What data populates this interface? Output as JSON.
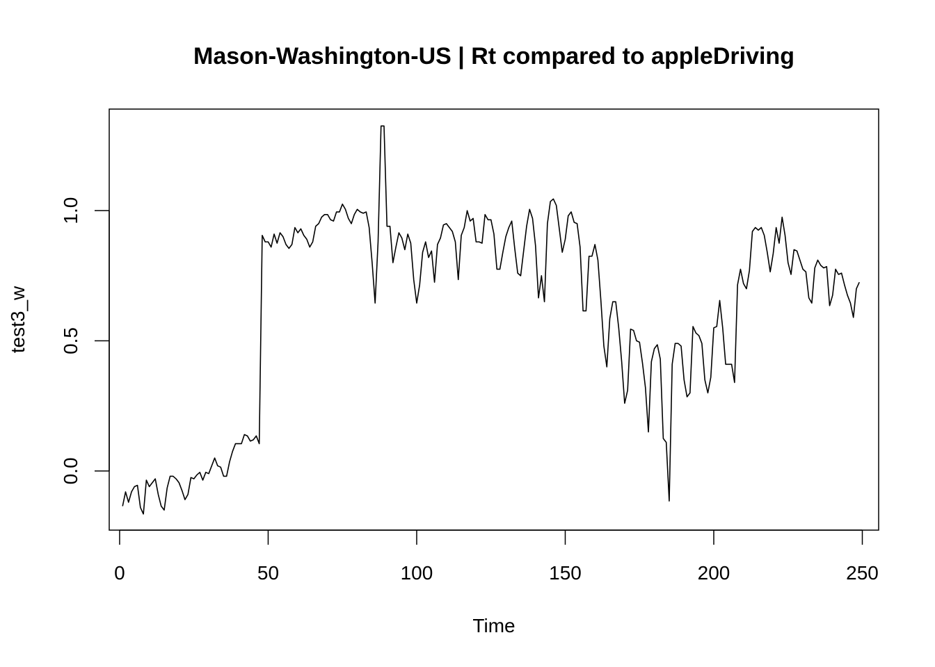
{
  "chart_data": {
    "type": "line",
    "title": "Mason-Washington-US | Rt compared to appleDriving",
    "xlabel": "Time",
    "ylabel": "test3_w",
    "xlim": [
      -3.5,
      255.5
    ],
    "ylim": [
      -0.227,
      1.39
    ],
    "x_ticks": [
      0,
      50,
      100,
      150,
      200,
      250
    ],
    "x_tick_labels": [
      "0",
      "50",
      "100",
      "150",
      "200",
      "250"
    ],
    "y_ticks": [
      0.0,
      0.5,
      1.0
    ],
    "y_tick_labels": [
      "0.0",
      "0.5",
      "1.0"
    ],
    "grid": false,
    "series": [
      {
        "x_start": 1,
        "values": [
          -0.135,
          -0.08,
          -0.12,
          -0.08,
          -0.06,
          -0.055,
          -0.14,
          -0.165,
          -0.035,
          -0.06,
          -0.045,
          -0.03,
          -0.09,
          -0.135,
          -0.15,
          -0.065,
          -0.02,
          -0.02,
          -0.03,
          -0.045,
          -0.075,
          -0.11,
          -0.09,
          -0.025,
          -0.03,
          -0.015,
          -0.005,
          -0.035,
          -0.005,
          -0.01,
          0.02,
          0.05,
          0.02,
          0.015,
          -0.02,
          -0.02,
          0.035,
          0.075,
          0.105,
          0.105,
          0.105,
          0.14,
          0.135,
          0.115,
          0.12,
          0.135,
          0.105,
          0.905,
          0.88,
          0.88,
          0.86,
          0.91,
          0.875,
          0.915,
          0.9,
          0.87,
          0.855,
          0.87,
          0.935,
          0.915,
          0.93,
          0.905,
          0.89,
          0.86,
          0.88,
          0.94,
          0.95,
          0.975,
          0.985,
          0.985,
          0.965,
          0.96,
          0.995,
          0.995,
          1.025,
          1.005,
          0.97,
          0.95,
          0.985,
          1.005,
          0.995,
          0.99,
          0.995,
          0.935,
          0.8,
          0.645,
          0.88,
          1.325,
          1.325,
          0.94,
          0.94,
          0.8,
          0.86,
          0.915,
          0.895,
          0.85,
          0.91,
          0.875,
          0.735,
          0.645,
          0.715,
          0.84,
          0.88,
          0.82,
          0.845,
          0.725,
          0.87,
          0.895,
          0.945,
          0.95,
          0.935,
          0.92,
          0.88,
          0.735,
          0.905,
          0.935,
          1.0,
          0.96,
          0.97,
          0.88,
          0.88,
          0.875,
          0.985,
          0.965,
          0.965,
          0.91,
          0.775,
          0.775,
          0.84,
          0.9,
          0.935,
          0.96,
          0.855,
          0.76,
          0.75,
          0.845,
          0.94,
          1.005,
          0.97,
          0.865,
          0.665,
          0.75,
          0.65,
          0.95,
          1.035,
          1.045,
          1.02,
          0.93,
          0.84,
          0.89,
          0.98,
          0.995,
          0.955,
          0.95,
          0.86,
          0.615,
          0.615,
          0.825,
          0.825,
          0.87,
          0.81,
          0.655,
          0.48,
          0.4,
          0.585,
          0.65,
          0.65,
          0.55,
          0.42,
          0.26,
          0.31,
          0.545,
          0.54,
          0.5,
          0.495,
          0.415,
          0.32,
          0.15,
          0.42,
          0.47,
          0.485,
          0.43,
          0.125,
          0.11,
          -0.115,
          0.41,
          0.49,
          0.49,
          0.48,
          0.35,
          0.285,
          0.3,
          0.555,
          0.53,
          0.52,
          0.49,
          0.35,
          0.3,
          0.36,
          0.55,
          0.555,
          0.655,
          0.55,
          0.41,
          0.41,
          0.41,
          0.34,
          0.715,
          0.775,
          0.72,
          0.7,
          0.77,
          0.92,
          0.935,
          0.925,
          0.935,
          0.905,
          0.84,
          0.765,
          0.835,
          0.935,
          0.875,
          0.975,
          0.905,
          0.8,
          0.755,
          0.85,
          0.845,
          0.81,
          0.775,
          0.765,
          0.665,
          0.645,
          0.78,
          0.81,
          0.79,
          0.78,
          0.785,
          0.635,
          0.675,
          0.775,
          0.755,
          0.76,
          0.715,
          0.675,
          0.645,
          0.59,
          0.7,
          0.725
        ]
      }
    ]
  }
}
